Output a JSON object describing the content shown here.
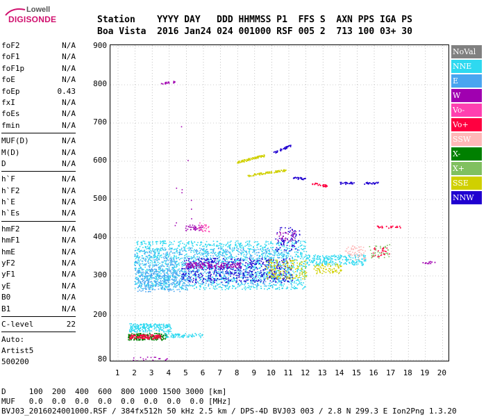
{
  "logo": {
    "top": "Lowell",
    "main": "DIGISONDE"
  },
  "header": {
    "line1": "Station    YYYY DAY   DDD HHMMSS P1  FFS S  AXN PPS IGA PS",
    "line2": "Boa Vista  2016 Jan24 024 001000 RSF 005 2  713 100 03+ 30"
  },
  "params": {
    "group1": [
      {
        "name": "foF2",
        "value": "N/A"
      },
      {
        "name": "foF1",
        "value": "N/A"
      },
      {
        "name": "foF1p",
        "value": "N/A"
      },
      {
        "name": "foE",
        "value": "N/A"
      },
      {
        "name": "foEp",
        "value": "0.43"
      },
      {
        "name": "fxI",
        "value": "N/A"
      },
      {
        "name": "foEs",
        "value": "N/A"
      },
      {
        "name": "fmin",
        "value": "N/A"
      }
    ],
    "group2": [
      {
        "name": "MUF(D)",
        "value": "N/A"
      },
      {
        "name": "M(D)",
        "value": "N/A"
      },
      {
        "name": "D",
        "value": "N/A"
      }
    ],
    "group3": [
      {
        "name": "h`F",
        "value": "N/A"
      },
      {
        "name": "h`F2",
        "value": "N/A"
      },
      {
        "name": "h`E",
        "value": "N/A"
      },
      {
        "name": "h`Es",
        "value": "N/A"
      }
    ],
    "group4": [
      {
        "name": "hmF2",
        "value": "N/A"
      },
      {
        "name": "hmF1",
        "value": "N/A"
      },
      {
        "name": "hmE",
        "value": "N/A"
      },
      {
        "name": "yF2",
        "value": "N/A"
      },
      {
        "name": "yF1",
        "value": "N/A"
      },
      {
        "name": "yE",
        "value": "N/A"
      },
      {
        "name": "B0",
        "value": "N/A"
      },
      {
        "name": "B1",
        "value": "N/A"
      }
    ],
    "clevel": {
      "name": "C-level",
      "value": "22"
    },
    "auto": [
      "Auto:",
      "Artist5",
      "500200"
    ]
  },
  "legend": [
    {
      "label": "NoVal",
      "color": "#808080"
    },
    {
      "label": "NNE",
      "color": "#2ed9f0"
    },
    {
      "label": "E",
      "color": "#4aa5f0"
    },
    {
      "label": "W",
      "color": "#a000b0"
    },
    {
      "label": "Vo-",
      "color": "#ff40b0"
    },
    {
      "label": "Vo+",
      "color": "#ff0040"
    },
    {
      "label": "SSW",
      "color": "#ffb8b8"
    },
    {
      "label": "X-",
      "color": "#008000"
    },
    {
      "label": "X+",
      "color": "#80c060"
    },
    {
      "label": "SSE",
      "color": "#d0d000"
    },
    {
      "label": "NNW",
      "color": "#2000d0"
    }
  ],
  "axes": {
    "y_ticks": [
      "900",
      "800",
      "700",
      "600",
      "500",
      "400",
      "300",
      "200",
      "80"
    ],
    "x_ticks": [
      "1",
      "2",
      "3",
      "4",
      "5",
      "6",
      "7",
      "8",
      "9",
      "10",
      "11",
      "12",
      "13",
      "14",
      "15",
      "16",
      "17",
      "18",
      "19",
      "20"
    ]
  },
  "footer": {
    "line1": "D     100  200  400  600  800 1000 1500 3000 [km]",
    "line2": "MUF   0.0  0.0  0.0  0.0  0.0  0.0  0.0  0.0 [MHz]",
    "line3": "BVJ03_2016024001000.RSF / 384fx512h 50 kHz 2.5 km / DPS-4D BVJ03 003 / 2.8 N 299.3 E Ion2Png 1.3.20"
  }
}
